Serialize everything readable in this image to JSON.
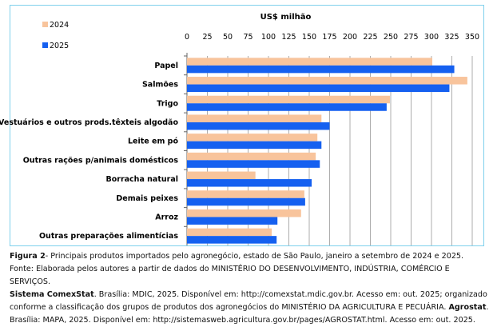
{
  "chart_data": {
    "type": "bar",
    "orientation": "horizontal",
    "title": "US$ milhão",
    "xlabel": "US$ milhão",
    "ylabel": "",
    "xlim": [
      0,
      350
    ],
    "ticks": [
      "0",
      "25",
      "50",
      "75",
      "100",
      "125",
      "150",
      "175",
      "200",
      "225",
      "250",
      "275",
      "300",
      "325",
      "350"
    ],
    "grid": true,
    "legend_position": "top-left",
    "categories": [
      "Papel",
      "Salmões",
      "Trigo",
      "Vestuários e outros prods.têxteis algodão",
      "Leite em pó",
      "Outras rações p/animais domésticos",
      "Borracha natural",
      "Demais peixes",
      "Arroz",
      "Outras preparações alimentícias"
    ],
    "series": [
      {
        "name": "2024",
        "color": "#f8c49c",
        "values": [
          301,
          344,
          249,
          165,
          160,
          158,
          84,
          144,
          140,
          104
        ]
      },
      {
        "name": "2025",
        "color": "#1560f0",
        "values": [
          328,
          322,
          245,
          175,
          165,
          163,
          153,
          145,
          111,
          110
        ]
      }
    ]
  },
  "caption": {
    "fig_label": "Figura 2",
    "fig_text": "- Principais produtos importados pelo agronegócio, estado de São Paulo, janeiro a setembro de 2024 e 2025.",
    "line2": "Fonte: Elaborada pelos autores a partir de dados do MINISTÉRIO DO DESENVOLVIMENTO, INDÚSTRIA, COMÉRCIO E SERVIÇOS.",
    "line3_bold": "Sistema ComexStat",
    "line3": ". Brasília: MDIC, 2025. Disponível em: http://comexstat.mdic.gov.br. Acesso em: out. 2025; organizado",
    "line4a": "conforme a classificação dos grupos de produtos dos agronegócios do MINISTÉRIO DA AGRICULTURA E PECUÁRIA. ",
    "line4_bold": "Agrostat",
    "line4b": ".",
    "line5": "Brasília: MAPA, 2025. Disponível em: http://sistemasweb.agricultura.gov.br/pages/AGROSTAT.html. Acesso em: out. 2025."
  }
}
